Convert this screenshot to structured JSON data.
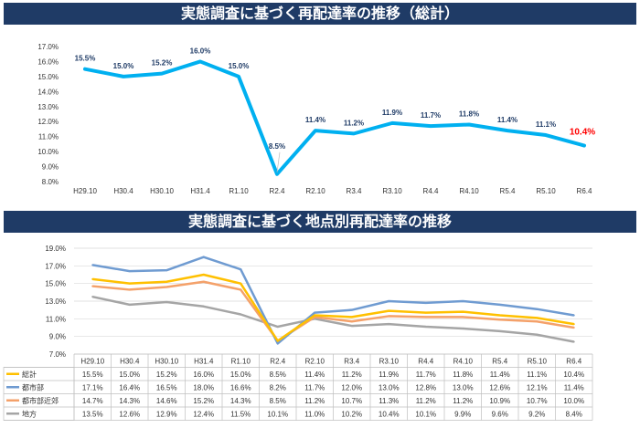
{
  "chart_data": [
    {
      "type": "line",
      "title": "実態調査に基づく再配達率の推移（総計）",
      "categories": [
        "H29.10",
        "H30.4",
        "H30.10",
        "H31.4",
        "R1.10",
        "R2.4",
        "R2.10",
        "R3.4",
        "R3.10",
        "R4.4",
        "R4.10",
        "R5.4",
        "R5.10",
        "R6.4"
      ],
      "series": [
        {
          "values": [
            15.5,
            15.0,
            15.2,
            16.0,
            15.0,
            8.5,
            11.4,
            11.2,
            11.9,
            11.7,
            11.8,
            11.4,
            11.1,
            10.4
          ],
          "labels": [
            "15.5%",
            "15.0%",
            "15.2%",
            "16.0%",
            "15.0%",
            "8.5%",
            "11.4%",
            "11.2%",
            "11.9%",
            "11.7%",
            "11.8%",
            "11.4%",
            "11.1%",
            "10.4%"
          ],
          "color": "#00b0f0"
        }
      ],
      "highlight_color": "#ff0000",
      "yticks": [
        "17.0%",
        "16.0%",
        "15.0%",
        "14.0%",
        "13.0%",
        "12.0%",
        "11.0%",
        "10.0%",
        "9.0%",
        "8.0%"
      ],
      "ylim": [
        8,
        17
      ],
      "grid": false
    },
    {
      "type": "line",
      "title": "実態調査に基づく地点別再配達率の推移",
      "categories": [
        "H29.10",
        "H30.4",
        "H30.10",
        "H31.4",
        "R1.10",
        "R2.4",
        "R2.10",
        "R3.4",
        "R3.10",
        "R4.4",
        "R4.10",
        "R5.4",
        "R5.10",
        "R6.4"
      ],
      "series": [
        {
          "name": "総計",
          "color": "#ffc000",
          "values": [
            15.5,
            15.0,
            15.2,
            16.0,
            15.0,
            8.5,
            11.4,
            11.2,
            11.9,
            11.7,
            11.8,
            11.4,
            11.1,
            10.4
          ],
          "cells": [
            "15.5%",
            "15.0%",
            "15.2%",
            "16.0%",
            "15.0%",
            "8.5%",
            "11.4%",
            "11.2%",
            "11.9%",
            "11.7%",
            "11.8%",
            "11.4%",
            "11.1%",
            "10.4%"
          ]
        },
        {
          "name": "都市部",
          "color": "#6f9bd1",
          "values": [
            17.1,
            16.4,
            16.5,
            18.0,
            16.6,
            8.2,
            11.7,
            12.0,
            13.0,
            12.8,
            13.0,
            12.6,
            12.1,
            11.4
          ],
          "cells": [
            "17.1%",
            "16.4%",
            "16.5%",
            "18.0%",
            "16.6%",
            "8.2%",
            "11.7%",
            "12.0%",
            "13.0%",
            "12.8%",
            "13.0%",
            "12.6%",
            "12.1%",
            "11.4%"
          ]
        },
        {
          "name": "都市部近郊",
          "color": "#f4a16a",
          "values": [
            14.7,
            14.3,
            14.6,
            15.2,
            14.3,
            8.5,
            11.2,
            10.7,
            11.3,
            11.2,
            11.2,
            10.9,
            10.7,
            10.0
          ],
          "cells": [
            "14.7%",
            "14.3%",
            "14.6%",
            "15.2%",
            "14.3%",
            "8.5%",
            "11.2%",
            "10.7%",
            "11.3%",
            "11.2%",
            "11.2%",
            "10.9%",
            "10.7%",
            "10.0%"
          ]
        },
        {
          "name": "地方",
          "color": "#a5a5a5",
          "values": [
            13.5,
            12.6,
            12.9,
            12.4,
            11.5,
            10.1,
            11.0,
            10.2,
            10.4,
            10.1,
            9.9,
            9.6,
            9.2,
            8.4
          ],
          "cells": [
            "13.5%",
            "12.6%",
            "12.9%",
            "12.4%",
            "11.5%",
            "10.1%",
            "11.0%",
            "10.2%",
            "10.4%",
            "10.1%",
            "9.9%",
            "9.6%",
            "9.2%",
            "8.4%"
          ]
        }
      ],
      "yticks": [
        "19.0%",
        "17.0%",
        "15.0%",
        "13.0%",
        "11.0%",
        "9.0%",
        "7.0%"
      ],
      "ylim": [
        7,
        19
      ],
      "grid": true
    }
  ]
}
